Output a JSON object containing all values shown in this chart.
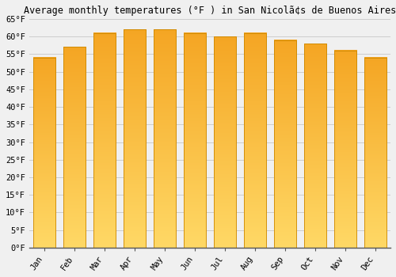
{
  "title": "Average monthly temperatures (°F ) in San Nicolã¢s de Buenos Aires",
  "months": [
    "Jan",
    "Feb",
    "Mar",
    "Apr",
    "May",
    "Jun",
    "Jul",
    "Aug",
    "Sep",
    "Oct",
    "Nov",
    "Dec"
  ],
  "values": [
    54,
    57,
    61,
    62,
    62,
    61,
    60,
    61,
    59,
    58,
    56,
    54
  ],
  "bar_color_top": "#F5A623",
  "bar_color_bottom": "#FFD966",
  "bar_edge_color": "#CC8800",
  "background_color": "#F0F0F0",
  "grid_color": "#CCCCCC",
  "ylim": [
    0,
    65
  ],
  "yticks": [
    0,
    5,
    10,
    15,
    20,
    25,
    30,
    35,
    40,
    45,
    50,
    55,
    60,
    65
  ],
  "ytick_labels": [
    "0°F",
    "5°F",
    "10°F",
    "15°F",
    "20°F",
    "25°F",
    "30°F",
    "35°F",
    "40°F",
    "45°F",
    "50°F",
    "55°F",
    "60°F",
    "65°F"
  ],
  "title_fontsize": 8.5,
  "tick_fontsize": 7.5,
  "font_family": "monospace"
}
